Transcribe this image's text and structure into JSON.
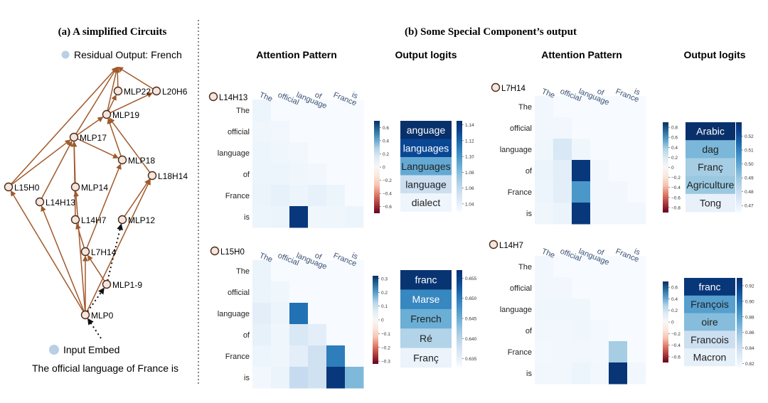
{
  "panel_a": {
    "title": "(a)  A simplified Circuits",
    "legend_residual": "Residual Output: French",
    "legend_input": "Input Embed",
    "sentence": "The official language of France is",
    "nodes": [
      {
        "id": "MLP22",
        "label": "MLP22"
      },
      {
        "id": "L20H6",
        "label": "L20H6"
      },
      {
        "id": "MLP19",
        "label": "MLP19"
      },
      {
        "id": "MLP17",
        "label": "MLP17"
      },
      {
        "id": "MLP18",
        "label": "MLP18"
      },
      {
        "id": "L18H14",
        "label": "L18H14"
      },
      {
        "id": "L15H0",
        "label": "L15H0"
      },
      {
        "id": "L14H13",
        "label": "L14H13"
      },
      {
        "id": "MLP14",
        "label": "MLP14"
      },
      {
        "id": "L14H7",
        "label": "L14H7"
      },
      {
        "id": "MLP12",
        "label": "MLP12"
      },
      {
        "id": "L7H14",
        "label": "L7H14"
      },
      {
        "id": "MLP1-9",
        "label": "MLP1-9"
      },
      {
        "id": "MLP0",
        "label": "MLP0"
      }
    ],
    "edges": [
      [
        "MLP22",
        "RES"
      ],
      [
        "L20H6",
        "RES"
      ],
      [
        "MLP19",
        "MLP22"
      ],
      [
        "MLP19",
        "L20H6"
      ],
      [
        "MLP19",
        "RES"
      ],
      [
        "MLP17",
        "RES"
      ],
      [
        "MLP17",
        "MLP19"
      ],
      [
        "MLP17",
        "MLP18"
      ],
      [
        "MLP18",
        "MLP19"
      ],
      [
        "L18H14",
        "MLP19"
      ],
      [
        "L15H0",
        "RES"
      ],
      [
        "L15H0",
        "MLP17"
      ],
      [
        "L14H13",
        "MLP17"
      ],
      [
        "MLP14",
        "MLP17"
      ],
      [
        "L14H7",
        "MLP17"
      ],
      [
        "L7H14",
        "MLP18"
      ],
      [
        "MLP12",
        "L18H14"
      ],
      [
        "L7H14",
        "L14H7"
      ],
      [
        "MLP0",
        "L15H0"
      ],
      [
        "MLP0",
        "L14H13"
      ],
      [
        "MLP0",
        "MLP14"
      ],
      [
        "MLP0",
        "L7H14"
      ],
      [
        "MLP0",
        "L18H14"
      ],
      [
        "MLP1-9",
        "L7H14"
      ]
    ],
    "dotted_edges": [
      [
        "MLP0",
        "MLP1-9"
      ],
      [
        "MLP1-9",
        "MLP12"
      ],
      [
        "INPUT",
        "MLP0"
      ]
    ],
    "colors": {
      "edge": "#a0592a",
      "node_fill": "#f6e6dc",
      "node_stroke": "#4a2a1a",
      "legend_dot": "#b9cfe6"
    }
  },
  "panel_b": {
    "title": "(b)  Some Special Component’s output",
    "attention_heading": "Attention Pattern",
    "logits_heading": "Output logits",
    "tokens": [
      "The",
      "official",
      "language",
      "of",
      "France",
      "is"
    ],
    "heads": [
      {
        "name": "L14H13",
        "attention": [
          [
            0.05,
            0,
            0,
            0,
            0,
            0
          ],
          [
            0.04,
            0.03,
            0,
            0,
            0,
            0
          ],
          [
            0.05,
            0.04,
            0.03,
            0,
            0,
            0
          ],
          [
            0.05,
            0.05,
            0.04,
            0.03,
            0,
            0
          ],
          [
            0.06,
            0.08,
            0.05,
            0.08,
            0.05,
            0
          ],
          [
            0.05,
            0.06,
            0.95,
            0.04,
            0.04,
            0.05
          ]
        ],
        "attn_colorbar": {
          "ticks": [
            "0.6",
            "0.4",
            "0.2",
            "0",
            "−0.2",
            "−0.4",
            "−0.6"
          ],
          "min": -0.7,
          "max": 0.7
        },
        "logits": [
          {
            "token": "anguage",
            "value": 1.145
          },
          {
            "token": "languages",
            "value": 1.13
          },
          {
            "token": "Languages",
            "value": 1.09
          },
          {
            "token": "language",
            "value": 1.055
          },
          {
            "token": "dialect",
            "value": 1.035
          }
        ],
        "logit_colorbar": {
          "ticks": [
            "1.14",
            "1.12",
            "1.10",
            "1.08",
            "1.06",
            "1.04"
          ],
          "min": 1.03,
          "max": 1.145
        }
      },
      {
        "name": "L7H14",
        "attention": [
          [
            0.03,
            0,
            0,
            0,
            0,
            0
          ],
          [
            0.03,
            0.03,
            0,
            0,
            0,
            0
          ],
          [
            0.04,
            0.15,
            0.04,
            0,
            0,
            0
          ],
          [
            0.06,
            0.1,
            0.95,
            0.03,
            0,
            0
          ],
          [
            0.05,
            0.1,
            0.6,
            0.03,
            0.03,
            0
          ],
          [
            0.04,
            0.06,
            0.95,
            0.03,
            0.03,
            0.03
          ]
        ],
        "attn_colorbar": {
          "ticks": [
            "0.8",
            "0.6",
            "0.4",
            "0.2",
            "0",
            "−0.2",
            "−0.4",
            "−0.6",
            "−0.8"
          ],
          "min": -0.9,
          "max": 0.9
        },
        "logits": [
          {
            "token": "Arabic",
            "value": 0.53
          },
          {
            "token": "dag",
            "value": 0.495
          },
          {
            "token": "Franç",
            "value": 0.488
          },
          {
            "token": "Agriculture",
            "value": 0.49
          },
          {
            "token": "Tong",
            "value": 0.47
          }
        ],
        "logit_colorbar": {
          "ticks": [
            "0.52",
            "0.51",
            "0.50",
            "0.49",
            "0.48",
            "0.47"
          ],
          "min": 0.465,
          "max": 0.53
        }
      },
      {
        "name": "L15H0",
        "attention": [
          [
            0.06,
            0,
            0,
            0,
            0,
            0
          ],
          [
            0.06,
            0.04,
            0,
            0,
            0,
            0
          ],
          [
            0.1,
            0.05,
            0.75,
            0,
            0,
            0
          ],
          [
            0.08,
            0.04,
            0.15,
            0.1,
            0,
            0
          ],
          [
            0.05,
            0.04,
            0.1,
            0.2,
            0.7,
            0
          ],
          [
            0.03,
            0.06,
            0.25,
            0.2,
            0.95,
            0.45
          ]
        ],
        "attn_colorbar": {
          "ticks": [
            "0.3",
            "0.2",
            "0.1",
            "0",
            "−0.1",
            "−0.2",
            "−0.3"
          ],
          "min": -0.32,
          "max": 0.32
        },
        "logits": [
          {
            "token": "franc",
            "value": 0.6565
          },
          {
            "token": "Marse",
            "value": 0.649
          },
          {
            "token": "French",
            "value": 0.645
          },
          {
            "token": "Ré",
            "value": 0.6405
          },
          {
            "token": "Franç",
            "value": 0.6345
          }
        ],
        "logit_colorbar": {
          "ticks": [
            "0.655",
            "0.650",
            "0.645",
            "0.640",
            "0.635"
          ],
          "min": 0.633,
          "max": 0.657
        }
      },
      {
        "name": "L14H7",
        "attention": [
          [
            0.03,
            0,
            0,
            0,
            0,
            0
          ],
          [
            0.03,
            0.03,
            0,
            0,
            0,
            0
          ],
          [
            0.04,
            0.04,
            0.04,
            0,
            0,
            0
          ],
          [
            0.03,
            0.03,
            0.04,
            0.02,
            0,
            0
          ],
          [
            0.02,
            0.03,
            0.03,
            0.02,
            0.35,
            0
          ],
          [
            0.03,
            0.03,
            0.05,
            0.03,
            0.97,
            0.03
          ]
        ],
        "attn_colorbar": {
          "ticks": [
            "0.6",
            "0.4",
            "0.2",
            "0",
            "−0.2",
            "−0.4",
            "−0.6"
          ],
          "min": -0.7,
          "max": 0.7
        },
        "logits": [
          {
            "token": "franc",
            "value": 0.925
          },
          {
            "token": "François",
            "value": 0.88
          },
          {
            "token": "oire",
            "value": 0.865
          },
          {
            "token": "Francois",
            "value": 0.84
          },
          {
            "token": "Macron",
            "value": 0.825
          }
        ],
        "logit_colorbar": {
          "ticks": [
            "0.92",
            "0.90",
            "0.88",
            "0.86",
            "0.84",
            "0.82"
          ],
          "min": 0.815,
          "max": 0.93
        }
      }
    ]
  }
}
